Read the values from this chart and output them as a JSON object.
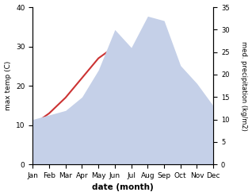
{
  "months": [
    "Jan",
    "Feb",
    "Mar",
    "Apr",
    "May",
    "Jun",
    "Jul",
    "Aug",
    "Sep",
    "Oct",
    "Nov",
    "Dec"
  ],
  "temperature": [
    10,
    13,
    17,
    22,
    27,
    30,
    29,
    32,
    32,
    24,
    19,
    13
  ],
  "precipitation": [
    10,
    11,
    12,
    15,
    21,
    30,
    26,
    33,
    32,
    22,
    18,
    13
  ],
  "temp_color": "#cc3333",
  "precip_color": "#c5d0e8",
  "temp_ylim": [
    0,
    40
  ],
  "precip_ylim": [
    0,
    35
  ],
  "temp_yticks": [
    0,
    10,
    20,
    30,
    40
  ],
  "precip_yticks": [
    0,
    5,
    10,
    15,
    20,
    25,
    30,
    35
  ],
  "ylabel_left": "max temp (C)",
  "ylabel_right": "med. precipitation (kg/m2)",
  "xlabel": "date (month)",
  "background_color": "#ffffff",
  "figsize": [
    3.18,
    2.47
  ],
  "dpi": 100
}
